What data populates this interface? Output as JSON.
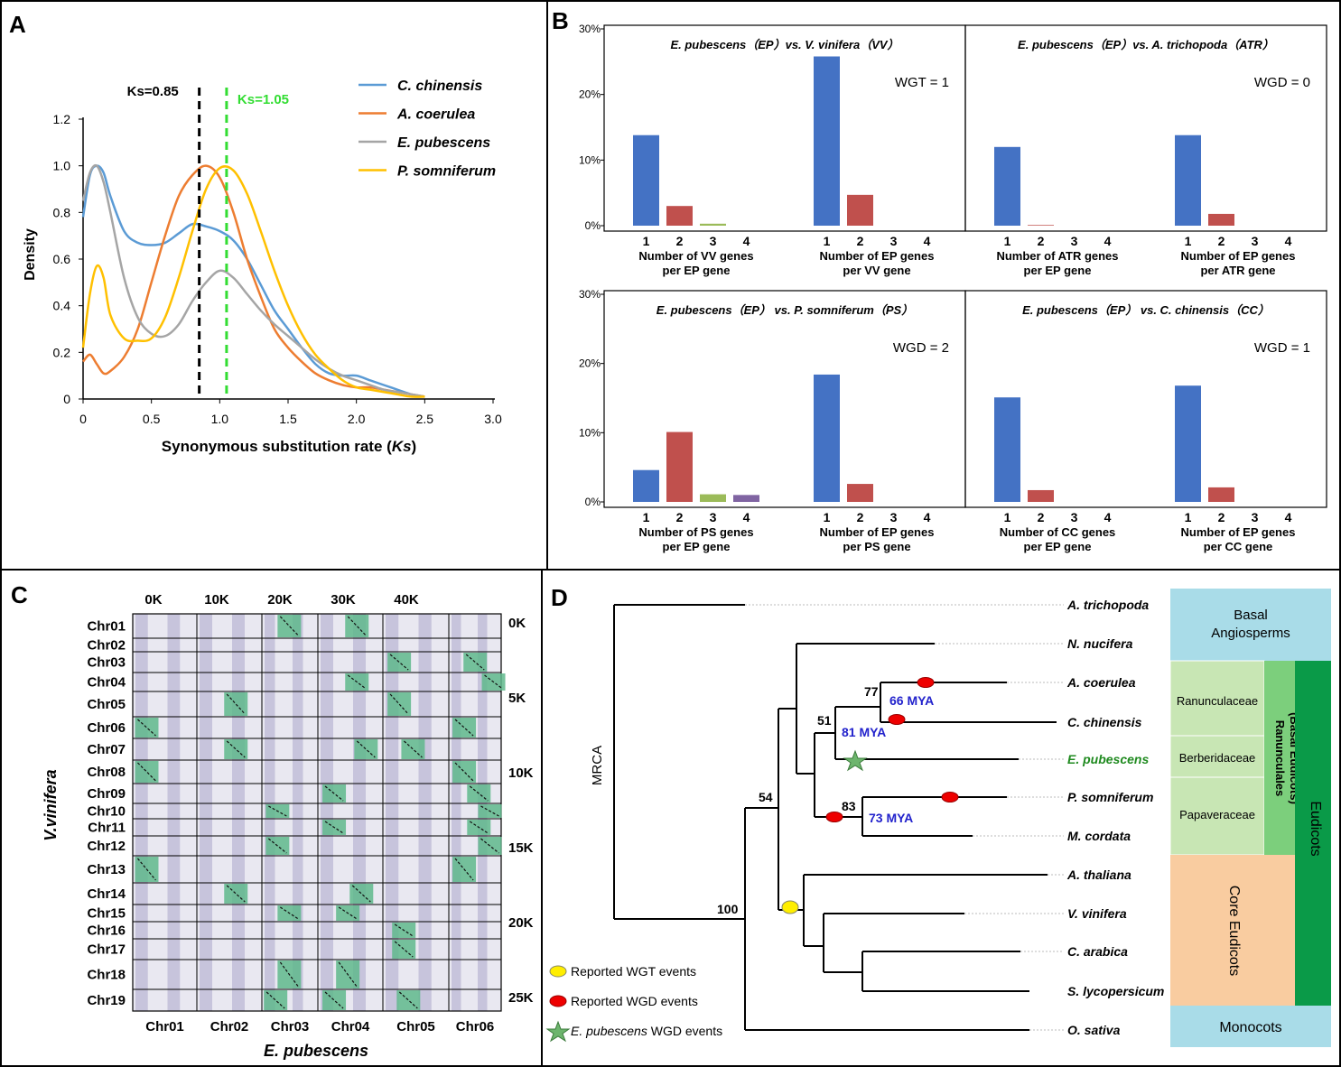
{
  "panels": {
    "a": "A",
    "b": "B",
    "c": "C",
    "d": "D"
  },
  "panelA": {
    "chart_data": {
      "type": "line",
      "xlabel": "Synonymous substitution rate (Ks)",
      "xlabel_main": "Synonymous substitution rate (",
      "xlabel_italic": "Ks",
      "xlabel_end": ")",
      "ylabel": "Density",
      "xlim": [
        0,
        3.0
      ],
      "ylim": [
        0,
        1.2
      ],
      "xticks": [
        "0",
        "0.5",
        "1.0",
        "1.5",
        "2.0",
        "2.5",
        "3.0"
      ],
      "yticks": [
        "0",
        "0.2",
        "0.4",
        "0.6",
        "0.8",
        "1.0",
        "1.2"
      ],
      "series": [
        {
          "name": "C. chinensis",
          "color": "#5b9bd5",
          "x": [
            0,
            0.05,
            0.1,
            0.15,
            0.2,
            0.3,
            0.4,
            0.5,
            0.6,
            0.7,
            0.8,
            0.9,
            1.0,
            1.1,
            1.2,
            1.3,
            1.4,
            1.5,
            1.6,
            1.7,
            1.8,
            1.9,
            2.0,
            2.1,
            2.2,
            2.3,
            2.4,
            2.5
          ],
          "y": [
            0.78,
            0.96,
            1.0,
            0.97,
            0.87,
            0.72,
            0.67,
            0.66,
            0.67,
            0.71,
            0.75,
            0.74,
            0.72,
            0.68,
            0.6,
            0.49,
            0.38,
            0.3,
            0.22,
            0.15,
            0.11,
            0.1,
            0.1,
            0.08,
            0.06,
            0.04,
            0.02,
            0.01
          ]
        },
        {
          "name": "A. coerulea",
          "color": "#ed7d31",
          "x": [
            0,
            0.05,
            0.1,
            0.15,
            0.2,
            0.3,
            0.4,
            0.5,
            0.6,
            0.7,
            0.8,
            0.9,
            1.0,
            1.1,
            1.2,
            1.3,
            1.4,
            1.5,
            1.6,
            1.7,
            1.8,
            1.9,
            2.0,
            2.1,
            2.2,
            2.3,
            2.4,
            2.5
          ],
          "y": [
            0.16,
            0.19,
            0.15,
            0.11,
            0.12,
            0.18,
            0.3,
            0.5,
            0.7,
            0.87,
            0.96,
            1.0,
            0.95,
            0.8,
            0.6,
            0.44,
            0.3,
            0.22,
            0.16,
            0.11,
            0.08,
            0.06,
            0.05,
            0.05,
            0.04,
            0.03,
            0.02,
            0.01
          ]
        },
        {
          "name": "E. pubescens",
          "color": "#a5a5a5",
          "x": [
            0,
            0.05,
            0.1,
            0.15,
            0.2,
            0.3,
            0.4,
            0.5,
            0.6,
            0.7,
            0.8,
            0.9,
            1.0,
            1.1,
            1.2,
            1.3,
            1.4,
            1.5,
            1.6,
            1.7,
            1.8,
            1.9,
            2.0,
            2.1,
            2.2,
            2.3,
            2.4,
            2.5
          ],
          "y": [
            0.85,
            0.97,
            1.0,
            0.93,
            0.8,
            0.52,
            0.35,
            0.28,
            0.27,
            0.32,
            0.42,
            0.5,
            0.55,
            0.52,
            0.45,
            0.38,
            0.32,
            0.27,
            0.22,
            0.17,
            0.13,
            0.1,
            0.08,
            0.06,
            0.04,
            0.03,
            0.02,
            0.01
          ]
        },
        {
          "name": "P. somniferum",
          "color": "#ffc000",
          "x": [
            0,
            0.05,
            0.1,
            0.15,
            0.2,
            0.3,
            0.4,
            0.5,
            0.6,
            0.7,
            0.8,
            0.9,
            1.0,
            1.1,
            1.2,
            1.3,
            1.4,
            1.5,
            1.6,
            1.7,
            1.8,
            1.9,
            2.0,
            2.1,
            2.2,
            2.3,
            2.4,
            2.5
          ],
          "y": [
            0.22,
            0.45,
            0.57,
            0.52,
            0.36,
            0.26,
            0.25,
            0.26,
            0.35,
            0.52,
            0.72,
            0.9,
            0.99,
            0.98,
            0.88,
            0.72,
            0.55,
            0.4,
            0.28,
            0.19,
            0.13,
            0.08,
            0.05,
            0.04,
            0.03,
            0.02,
            0.01,
            0.01
          ]
        }
      ],
      "vlines": [
        {
          "x": 0.85,
          "label": "Ks=0.85",
          "color": "#000000"
        },
        {
          "x": 1.05,
          "label": "Ks=1.05",
          "color": "#33dd33"
        }
      ]
    }
  },
  "panelB": {
    "chart_data": [
      {
        "type": "bar",
        "title": "E. pubescens（EP）vs. V. vinifera（VV）",
        "event": "WGT = 1",
        "groups": [
          {
            "categories": [
              "1",
              "2",
              "3",
              "4"
            ],
            "values": [
              13.8,
              3.0,
              0.3,
              0
            ],
            "label1": "Number of VV genes",
            "label2": "per EP gene"
          },
          {
            "categories": [
              "1",
              "2",
              "3",
              "4"
            ],
            "values": [
              25.8,
              4.7,
              0,
              0
            ],
            "label1": "Number of EP genes",
            "label2": "per VV gene"
          }
        ]
      },
      {
        "type": "bar",
        "title": "E. pubescens（EP）vs. A. trichopoda（ATR）",
        "event": "WGD = 0",
        "groups": [
          {
            "categories": [
              "1",
              "2",
              "3",
              "4"
            ],
            "values": [
              12.0,
              0.1,
              0,
              0
            ],
            "label1": "Number of ATR genes",
            "label2": "per EP gene"
          },
          {
            "categories": [
              "1",
              "2",
              "3",
              "4"
            ],
            "values": [
              13.8,
              1.8,
              0,
              0
            ],
            "label1": "Number of EP genes",
            "label2": "per ATR gene"
          }
        ]
      },
      {
        "type": "bar",
        "title": "E. pubescens（EP） vs. P. somniferum（PS）",
        "event": "WGD = 2",
        "groups": [
          {
            "categories": [
              "1",
              "2",
              "3",
              "4"
            ],
            "values": [
              4.6,
              10.1,
              1.1,
              1.0
            ],
            "label1": "Number of PS genes",
            "label2": "per EP gene"
          },
          {
            "categories": [
              "1",
              "2",
              "3",
              "4"
            ],
            "values": [
              18.4,
              2.6,
              0,
              0
            ],
            "label1": "Number of EP genes",
            "label2": "per PS gene"
          }
        ]
      },
      {
        "type": "bar",
        "title": "E. pubescens（EP） vs. C. chinensis（CC）",
        "event": "WGD = 1",
        "groups": [
          {
            "categories": [
              "1",
              "2",
              "3",
              "4"
            ],
            "values": [
              15.1,
              1.7,
              0,
              0
            ],
            "label1": "Number of CC genes",
            "label2": "per EP gene"
          },
          {
            "categories": [
              "1",
              "2",
              "3",
              "4"
            ],
            "values": [
              16.8,
              2.1,
              0,
              0
            ],
            "label1": "Number of EP genes",
            "label2": "per CC gene"
          }
        ]
      }
    ],
    "yticks": [
      "0%",
      "10%",
      "20%",
      "30%"
    ],
    "bar_colors": [
      "#4472c4",
      "#c0504d",
      "#9bbb59",
      "#8064a2"
    ]
  },
  "panelC": {
    "xticks": [
      "0K",
      "10K",
      "20K",
      "30K",
      "40K"
    ],
    "yticks": [
      "0K",
      "5K",
      "10K",
      "15K",
      "20K",
      "25K"
    ],
    "rows": [
      "Chr01",
      "Chr02",
      "Chr03",
      "Chr04",
      "Chr05",
      "Chr06",
      "Chr07",
      "Chr08",
      "Chr09",
      "Chr10",
      "Chr11",
      "Chr12",
      "Chr13",
      "Chr14",
      "Chr15",
      "Chr16",
      "Chr17",
      "Chr18",
      "Chr19"
    ],
    "cols": [
      "Chr01",
      "Chr02",
      "Chr03",
      "Chr04",
      "Chr05",
      "Chr06"
    ],
    "ylabel": "V.vinifera",
    "xlabel": "E. pubescens"
  },
  "panelD": {
    "mrca": "MRCA",
    "taxa": [
      "A. trichopoda",
      "N. nucifera",
      "A. coerulea",
      "C. chinensis",
      "E. pubescens",
      "P. somniferum",
      "M. cordata",
      "A. thaliana",
      "V. vinifera",
      "C. arabica",
      "S. lycopersicum",
      "O. sativa"
    ],
    "bootstrap": [
      "77",
      "51",
      "83",
      "54",
      "100"
    ],
    "ages": [
      "66 MYA",
      "81 MYA",
      "73 MYA"
    ],
    "groups": {
      "basal": "Basal Angiosperms",
      "ranunculaceae": "Ranunculaceae",
      "berberidaceae": "Berberidaceae",
      "papaveraceae": "Papaveraceae",
      "core": "Core Eudicots",
      "monocots": "Monocots",
      "ranunculales": "Ranunculales (Basal Eudicots)",
      "eudicots": "Eudicots"
    },
    "legend": {
      "wgt": "Reported WGT events",
      "wgd": "Reported WGD events",
      "ep_italic": "E. pubescens",
      "ep_rest": " WGD events"
    }
  }
}
